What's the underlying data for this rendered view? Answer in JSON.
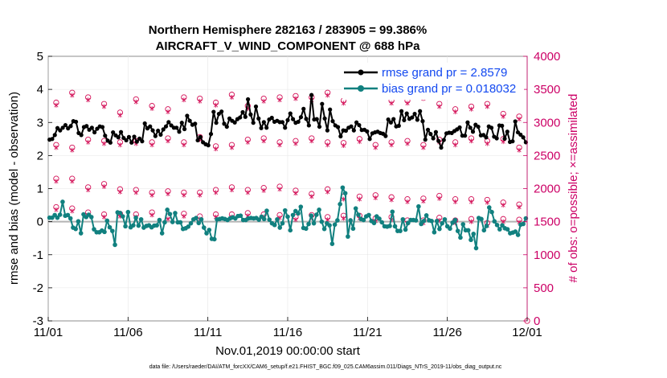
{
  "chart_data": {
    "type": "line",
    "title_line1": "Northern Hemisphere 282163 / 283905 = 99.386%",
    "title_line2": "AIRCRAFT_V_WIND_COMPONENT @ 688 hPa",
    "xlabel": "Nov.01,2019 00:00:00 start",
    "ylabel_left": "rmse and bias (model - observation)",
    "ylabel_right": "# of obs: o=possible; ×=assimilated",
    "footer": "data file: /Users/raeder/DAI/ATM_forcXX/CAM6_setup/f.e21.FHIST_BGC.f09_025.CAM6assim.011/Diags_NTrS_2019-11/obs_diag_output.nc",
    "x_range": [
      0,
      30
    ],
    "xticks": [
      {
        "value": 0,
        "label": "11/01"
      },
      {
        "value": 5,
        "label": "11/06"
      },
      {
        "value": 10,
        "label": "11/11"
      },
      {
        "value": 15,
        "label": "11/16"
      },
      {
        "value": 20,
        "label": "11/21"
      },
      {
        "value": 25,
        "label": "11/26"
      },
      {
        "value": 30,
        "label": "12/01"
      }
    ],
    "ylim_left": [
      -3,
      5
    ],
    "yticks_left": [
      "-3",
      "-2",
      "-1",
      "0",
      "1",
      "2",
      "3",
      "4",
      "5"
    ],
    "ylim_right": [
      0,
      4000
    ],
    "yticks_right": [
      "0",
      "500",
      "1000",
      "1500",
      "2000",
      "2500",
      "3000",
      "3500",
      "4000"
    ],
    "colors": {
      "rmse": "#000000",
      "bias": "#11807f",
      "obs": "#d4145a",
      "right_axis": "#cc0066",
      "legend_text": "#1248f0",
      "zero_line": "#b3b3b3"
    },
    "series": [
      {
        "name": "rmse grand pr = 2.8579",
        "axis": "left",
        "values": [
          2.48,
          2.5,
          2.62,
          2.83,
          2.76,
          2.84,
          2.92,
          2.82,
          2.89,
          3.04,
          3.02,
          2.68,
          2.62,
          2.86,
          2.89,
          2.78,
          2.84,
          2.7,
          2.81,
          2.88,
          2.86,
          2.6,
          2.45,
          2.39,
          2.7,
          2.61,
          2.55,
          2.71,
          2.53,
          2.46,
          2.56,
          2.39,
          2.57,
          2.42,
          2.51,
          2.43,
          2.97,
          2.82,
          2.88,
          2.76,
          2.59,
          2.75,
          2.63,
          2.79,
          2.88,
          3.01,
          2.91,
          2.84,
          2.84,
          2.72,
          2.99,
          2.8,
          3.2,
          3.05,
          2.93,
          2.96,
          2.46,
          2.56,
          2.4,
          2.34,
          2.31,
          2.65,
          3.32,
          2.99,
          3.26,
          3.33,
          2.96,
          2.87,
          3.12,
          3.05,
          3.0,
          3.1,
          3.15,
          3.31,
          3.17,
          3.7,
          3.24,
          2.99,
          3.48,
          3.12,
          2.83,
          3.01,
          2.84,
          3.09,
          3.14,
          3.02,
          3.05,
          3.01,
          3.01,
          2.84,
          3.07,
          3.27,
          3.1,
          2.99,
          3.02,
          3.16,
          3.41,
          3.11,
          2.91,
          3.83,
          3.09,
          3.1,
          2.87,
          3.56,
          3.12,
          2.76,
          3.39,
          3.04,
          2.91,
          2.86,
          2.58,
          2.76,
          2.75,
          2.84,
          2.88,
          2.76,
          3.0,
          2.92,
          2.77,
          2.78,
          2.73,
          2.5,
          2.67,
          2.7,
          2.72,
          2.68,
          2.66,
          2.59,
          3.09,
          3.0,
          3.1,
          2.88,
          2.9,
          3.34,
          3.07,
          3.27,
          3.11,
          3.15,
          3.26,
          3.08,
          3.34,
          3.04,
          2.48,
          2.78,
          2.65,
          2.52,
          2.71,
          2.44,
          2.24,
          2.47,
          2.67,
          2.69,
          2.68,
          2.74,
          2.79,
          2.85,
          2.6,
          2.6,
          3.0,
          2.84,
          2.72,
          2.93,
          2.87,
          2.61,
          2.62,
          2.55,
          2.88,
          2.84,
          2.57,
          2.52,
          2.91,
          2.9,
          2.51,
          2.72,
          2.41,
          2.43,
          3.03,
          2.7,
          2.63,
          2.55,
          2.4
        ]
      },
      {
        "name": "bias grand pr = 0.018032",
        "axis": "left",
        "values": [
          0.12,
          0.12,
          0.2,
          0.12,
          0.21,
          0.6,
          0.18,
          0.2,
          0.1,
          -0.18,
          -0.22,
          0.01,
          -0.35,
          0.22,
          0.14,
          0.21,
          0.14,
          -0.23,
          -0.32,
          -0.32,
          -0.27,
          -0.31,
          0.03,
          -0.17,
          -0.28,
          -0.7,
          0.28,
          0.26,
          0.16,
          -0.14,
          0.29,
          -0.17,
          -0.11,
          0.12,
          -0.12,
          0.07,
          -0.18,
          -0.13,
          -0.11,
          -0.17,
          -0.12,
          -0.11,
          0.05,
          -0.35,
          -0.02,
          0.36,
          0.23,
          -0.01,
          0.26,
          -0.02,
          -0.02,
          -0.22,
          -0.2,
          -0.15,
          -0.05,
          0.07,
          0.11,
          -0.04,
          0.07,
          -0.18,
          -0.35,
          -0.25,
          -0.52,
          -0.53,
          0.07,
          0.08,
          0.1,
          0.08,
          0.05,
          0.1,
          0.13,
          0.1,
          0.17,
          0.18,
          0.05,
          0.05,
          0.1,
          0.11,
          0.1,
          0.11,
          0.06,
          0.15,
          0.08,
          0.33,
          0.06,
          -0.05,
          -0.1,
          0.07,
          -0.18,
          -0.05,
          0.34,
          0.15,
          -0.26,
          0.2,
          0.32,
          0.25,
          0.45,
          -0.19,
          -0.21,
          -0.07,
          0.18,
          -0.05,
          0.21,
          0.36,
          0.0,
          -0.22,
          -0.05,
          -0.11,
          -0.67,
          -0.09,
          0.04,
          0.53,
          1.03,
          0.86,
          -0.45,
          0.04,
          -0.21,
          0.4,
          0.21,
          0.08,
          0.05,
          0.16,
          0.2,
          0.02,
          -0.04,
          0.16,
          0.09,
          -0.02,
          -0.14,
          -0.15,
          -0.13,
          0.3,
          -0.14,
          -0.28,
          -0.28,
          0.07,
          -0.24,
          -0.04,
          0.05,
          0.05,
          0.04,
          0.46,
          -0.07,
          0.02,
          0.19,
          0.04,
          0.02,
          -0.32,
          0.02,
          -0.22,
          -0.05,
          0.07,
          -0.14,
          -0.21,
          -0.03,
          0.05,
          -0.28,
          -0.48,
          -0.08,
          -0.26,
          -0.26,
          -0.55,
          -0.37,
          -0.8,
          0.11,
          0.08,
          -0.26,
          -0.13,
          0.43,
          0.29,
          0.01,
          -0.1,
          -0.23,
          -0.11,
          -0.2,
          -0.23,
          -0.35,
          -0.33,
          -0.3,
          -0.4,
          -0.09,
          -0.07,
          0.1
        ]
      }
    ],
    "obs_counts": {
      "x": [
        0.5,
        1.5,
        2.5,
        3.5,
        4.5,
        5.5,
        6.5,
        7.5,
        8.5,
        9.5,
        10.5,
        11.5,
        12.5,
        13.5,
        14.5,
        15.5,
        16.5,
        17.5,
        18.5,
        19.5,
        20.5,
        21.5,
        22.5,
        23.5,
        24.5,
        25.5,
        26.5,
        27.5,
        28.5,
        29.5
      ],
      "possible_day": [
        3300,
        3450,
        3380,
        3280,
        3150,
        3350,
        3250,
        3200,
        3380,
        3360,
        3300,
        3420,
        3250,
        3360,
        3380,
        3400,
        3380,
        3450,
        3330,
        3420,
        3420,
        3330,
        3330,
        3400,
        3280,
        3200,
        3240,
        3280,
        3130,
        3090
      ],
      "possible_night": [
        2150,
        2150,
        2020,
        2070,
        1990,
        1980,
        1940,
        1960,
        1940,
        1940,
        1980,
        2020,
        1980,
        2010,
        2030,
        1970,
        1920,
        1990,
        1880,
        1880,
        1900,
        1870,
        1840,
        1850,
        1890,
        1840,
        1840,
        1830,
        1790,
        1760
      ],
      "possible_low": [
        1720,
        1700,
        1640,
        1610,
        1620,
        1610,
        1640,
        1580,
        1620,
        1580,
        1610,
        1610,
        1630,
        1610,
        1600,
        1570,
        1600,
        1570,
        1590,
        1590,
        1550,
        1570,
        1520,
        1520,
        1560,
        1520,
        1540,
        1480,
        1540,
        1530
      ],
      "possible_mid": [
        2660,
        2620,
        2740,
        2720,
        2700,
        2720,
        2700,
        2760,
        2700,
        2780,
        2640,
        2660,
        2740,
        2760,
        2700,
        2720,
        2760,
        2700,
        2690,
        2750,
        2660,
        2700,
        2720,
        2660,
        2740,
        2700,
        2760,
        2720,
        2750,
        2620
      ],
      "assimilated_offset": -40
    }
  }
}
